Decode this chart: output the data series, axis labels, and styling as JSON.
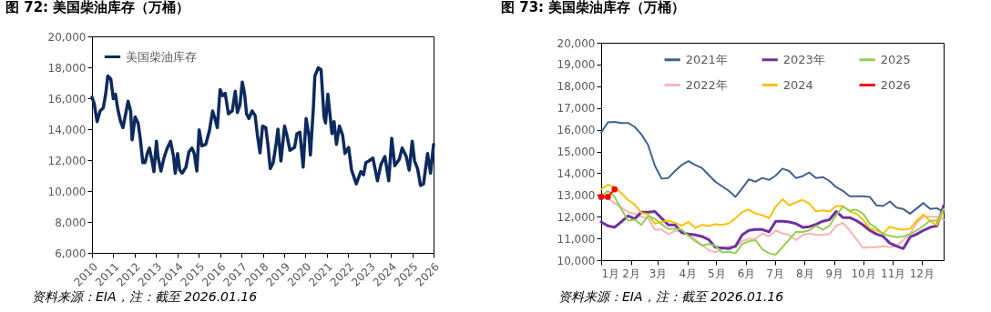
{
  "chart_data": [
    {
      "type": "line",
      "title": "图 72: 美国柴油库存（万桶）",
      "annotations": [
        "资料来源：EIA，注：截至 2026.01.16"
      ],
      "legend": "top left",
      "grid": false,
      "xlim": [
        2010,
        2026
      ],
      "xticks": [
        2010,
        2011,
        2012,
        2013,
        2014,
        2015,
        2016,
        2017,
        2018,
        2019,
        2020,
        2021,
        2022,
        2023,
        2024,
        2025,
        2026
      ],
      "ylim": [
        6000,
        20000
      ],
      "yticks": [
        {
          "value": 6000,
          "label": "6,000"
        },
        {
          "value": 8000,
          "label": "8,000"
        },
        {
          "value": 10000,
          "label": "10,000"
        },
        {
          "value": 12000,
          "label": "12,000"
        },
        {
          "value": 14000,
          "label": "14,000"
        },
        {
          "value": 16000,
          "label": "16,000"
        },
        {
          "value": 18000,
          "label": "18,000"
        },
        {
          "value": 20000,
          "label": "20,000"
        }
      ],
      "x": [
        2010.0,
        2010.1,
        2010.24,
        2010.38,
        2010.53,
        2010.64,
        2010.74,
        2010.88,
        2011.0,
        2011.1,
        2011.21,
        2011.34,
        2011.45,
        2011.59,
        2011.69,
        2011.81,
        2011.88,
        2012.02,
        2012.16,
        2012.26,
        2012.38,
        2012.49,
        2012.59,
        2012.69,
        2012.8,
        2012.9,
        2013.02,
        2013.09,
        2013.23,
        2013.37,
        2013.51,
        2013.68,
        2013.82,
        2013.9,
        2014.01,
        2014.11,
        2014.22,
        2014.4,
        2014.54,
        2014.68,
        2014.79,
        2014.91,
        2015.02,
        2015.15,
        2015.33,
        2015.5,
        2015.65,
        2015.76,
        2015.87,
        2016.0,
        2016.12,
        2016.24,
        2016.39,
        2016.57,
        2016.71,
        2016.81,
        2016.93,
        2017.04,
        2017.15,
        2017.24,
        2017.35,
        2017.5,
        2017.64,
        2017.75,
        2017.87,
        2017.99,
        2018.14,
        2018.24,
        2018.35,
        2018.49,
        2018.63,
        2018.71,
        2018.85,
        2019.02,
        2019.13,
        2019.27,
        2019.49,
        2019.6,
        2019.74,
        2019.89,
        2020.03,
        2020.17,
        2020.23,
        2020.37,
        2020.44,
        2020.6,
        2020.73,
        2020.87,
        2020.94,
        2021.05,
        2021.24,
        2021.34,
        2021.45,
        2021.59,
        2021.74,
        2021.85,
        2022.02,
        2022.16,
        2022.38,
        2022.59,
        2022.72,
        2022.83,
        2022.97,
        2023.16,
        2023.37,
        2023.54,
        2023.72,
        2023.9,
        2024.04,
        2024.18,
        2024.39,
        2024.53,
        2024.72,
        2024.86,
        2025.0,
        2025.11,
        2025.25,
        2025.39,
        2025.53,
        2025.72,
        2025.86,
        2026.0
      ],
      "series": [
        {
          "name": "美国柴油库存",
          "color": "#0d2a5e",
          "values": [
            16070,
            15670,
            14490,
            15180,
            15380,
            16260,
            17440,
            17250,
            15970,
            16260,
            15280,
            14490,
            14100,
            15080,
            15810,
            15180,
            13310,
            14790,
            14400,
            13410,
            11840,
            11840,
            12430,
            12780,
            12040,
            11250,
            13220,
            12230,
            11290,
            12130,
            12720,
            13220,
            12230,
            11150,
            12430,
            11350,
            11150,
            11540,
            12530,
            12780,
            12430,
            11290,
            13960,
            12920,
            13020,
            13900,
            15180,
            14690,
            14100,
            16560,
            16160,
            16320,
            14990,
            15180,
            16460,
            15080,
            15570,
            17050,
            16260,
            14990,
            14690,
            15180,
            14890,
            13610,
            12470,
            14200,
            14100,
            13020,
            11450,
            11840,
            13120,
            14000,
            11940,
            14200,
            13610,
            12630,
            12820,
            13710,
            13810,
            11550,
            14690,
            13510,
            12330,
            15380,
            17440,
            17970,
            17840,
            14790,
            14400,
            16260,
            13710,
            14490,
            13020,
            14200,
            13610,
            12430,
            12820,
            11350,
            10460,
            11250,
            11050,
            11840,
            11940,
            12130,
            10660,
            11740,
            12230,
            10660,
            13410,
            11640,
            12040,
            12780,
            12230,
            11350,
            13220,
            11940,
            11450,
            10360,
            10460,
            12430,
            11150,
            13020
          ]
        }
      ]
    },
    {
      "type": "line",
      "title": "图 73: 美国柴油库存（万桶）",
      "annotations": [
        "资料来源：EIA，注：截至 2026.01.16"
      ],
      "legend": "top",
      "grid": false,
      "xlim": [
        "--01-01",
        "--12-24"
      ],
      "xticks": [
        {
          "value": "--01-01",
          "label": "1月"
        },
        {
          "value": "--02-01",
          "label": "2月"
        },
        {
          "value": "--03-01",
          "label": "3月"
        },
        {
          "value": "--04-01",
          "label": "4月"
        },
        {
          "value": "--05-01",
          "label": "5月"
        },
        {
          "value": "--06-01",
          "label": "6月"
        },
        {
          "value": "--07-01",
          "label": "7月"
        },
        {
          "value": "--08-01",
          "label": "8月"
        },
        {
          "value": "--09-01",
          "label": "9月"
        },
        {
          "value": "--10-01",
          "label": "10月"
        },
        {
          "value": "--11-01",
          "label": "11月"
        },
        {
          "value": "--12-01",
          "label": "12月"
        }
      ],
      "ylim": [
        10000,
        20000
      ],
      "yticks": [
        {
          "value": 10000,
          "label": "10,000"
        },
        {
          "value": 11000,
          "label": "11,000"
        },
        {
          "value": 12000,
          "label": "12,000"
        },
        {
          "value": 13000,
          "label": "13,000"
        },
        {
          "value": 14000,
          "label": "14,000"
        },
        {
          "value": 15000,
          "label": "15,000"
        },
        {
          "value": 16000,
          "label": "16,000"
        },
        {
          "value": 17000,
          "label": "17,000"
        },
        {
          "value": 18000,
          "label": "18,000"
        },
        {
          "value": 19000,
          "label": "19,000"
        },
        {
          "value": 20000,
          "label": "20,000"
        }
      ],
      "x": [
        "--01-01",
        "--01-08",
        "--01-15",
        "--01-22",
        "--01-29",
        "--02-05",
        "--02-12",
        "--02-19",
        "--02-26",
        "--03-05",
        "--03-12",
        "--03-19",
        "--03-26",
        "--04-02",
        "--04-09",
        "--04-16",
        "--04-23",
        "--04-30",
        "--05-07",
        "--05-14",
        "--05-21",
        "--05-28",
        "--06-04",
        "--06-11",
        "--06-18",
        "--06-25",
        "--07-02",
        "--07-09",
        "--07-16",
        "--07-23",
        "--07-30",
        "--08-06",
        "--08-13",
        "--08-20",
        "--08-27",
        "--09-03",
        "--09-10",
        "--09-17",
        "--09-24",
        "--10-01",
        "--10-08",
        "--10-15",
        "--10-22",
        "--10-29",
        "--11-05",
        "--11-12",
        "--11-19",
        "--11-26",
        "--12-03",
        "--12-10",
        "--12-17",
        "--12-24"
      ],
      "series": [
        {
          "name": "2021年",
          "color": "#41628f",
          "values": [
            15870,
            16340,
            16360,
            16310,
            16310,
            16130,
            15780,
            15290,
            14340,
            13750,
            13780,
            14100,
            14380,
            14560,
            14380,
            14240,
            13920,
            13610,
            13400,
            13190,
            12910,
            13300,
            13720,
            13610,
            13780,
            13690,
            13890,
            14210,
            14100,
            13780,
            13860,
            14030,
            13780,
            13820,
            13640,
            13360,
            13190,
            12940,
            12940,
            12940,
            12910,
            12520,
            12490,
            12700,
            12420,
            12350,
            12140,
            12380,
            12630,
            12350,
            12390,
            12210
          ]
        },
        {
          "name": "2022年",
          "color": "#f7b4b4",
          "values": [
            12910,
            12840,
            12630,
            12420,
            12210,
            12140,
            12000,
            11930,
            11400,
            11410,
            11200,
            11340,
            11370,
            11160,
            10950,
            10700,
            10460,
            10360,
            10500,
            10640,
            10600,
            10880,
            10980,
            10980,
            11230,
            11090,
            11370,
            11230,
            11160,
            10920,
            11160,
            11230,
            11160,
            11160,
            11200,
            11580,
            11720,
            11370,
            10980,
            10560,
            10600,
            10600,
            10640,
            10600,
            10670,
            10920,
            11200,
            11720,
            12000,
            12000,
            12000,
            11860
          ]
        },
        {
          "name": "2023年",
          "color": "#7030a0",
          "values": [
            11760,
            11580,
            11510,
            11760,
            12040,
            11900,
            12210,
            12210,
            12240,
            11930,
            11620,
            11620,
            11260,
            11200,
            11160,
            11090,
            10950,
            10600,
            10560,
            10530,
            10640,
            11160,
            11370,
            11410,
            11410,
            11300,
            11790,
            11790,
            11760,
            11680,
            11510,
            11540,
            11650,
            11790,
            11860,
            12240,
            11960,
            11960,
            11820,
            11620,
            11370,
            11200,
            11090,
            10780,
            10640,
            10530,
            11060,
            11200,
            11370,
            11510,
            11580,
            12500
          ]
        },
        {
          "name": "2024",
          "color": "#ffc000",
          "values": [
            13260,
            13470,
            13360,
            13080,
            12770,
            12560,
            12180,
            12100,
            11680,
            11760,
            11820,
            11720,
            11580,
            11760,
            11480,
            11620,
            11570,
            11650,
            11620,
            11680,
            11930,
            12210,
            12320,
            12140,
            12070,
            11930,
            12460,
            12800,
            12520,
            12660,
            12770,
            12600,
            12240,
            12290,
            12240,
            12490,
            12490,
            12240,
            12140,
            11860,
            11480,
            11370,
            11230,
            11540,
            11440,
            11400,
            11440,
            11820,
            12100,
            11790,
            11620,
            12350
          ]
        },
        {
          "name": "2025",
          "color": "#92d050",
          "values": [
            12910,
            13190,
            12910,
            12350,
            11820,
            11860,
            11620,
            12040,
            11900,
            11650,
            11440,
            11440,
            11400,
            11120,
            10880,
            10670,
            10740,
            10670,
            10360,
            10390,
            10320,
            10740,
            10870,
            10920,
            10500,
            10320,
            10250,
            10600,
            10950,
            11300,
            11300,
            11370,
            11580,
            11400,
            11580,
            12070,
            12460,
            12280,
            12320,
            12140,
            11680,
            11480,
            11200,
            11120,
            11060,
            11090,
            11200,
            11370,
            11580,
            11820,
            11820,
            12350
          ]
        },
        {
          "name": "2026",
          "color": "#ff0000",
          "marker": "circle",
          "x": [
            "--01-01",
            "--01-08",
            "--01-15"
          ],
          "values": [
            12910,
            12910,
            13260
          ]
        }
      ]
    }
  ]
}
